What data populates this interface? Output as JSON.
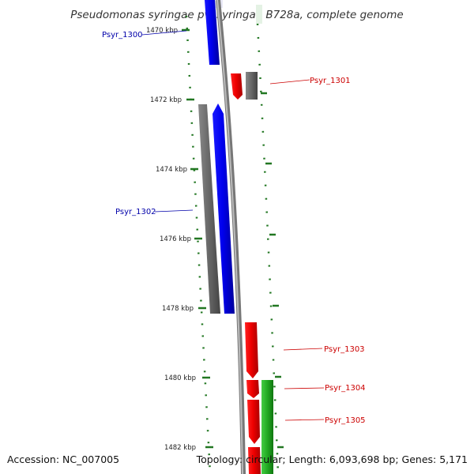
{
  "title": "Pseudomonas syringae pv. syringae B728a, complete genome",
  "footer": {
    "accession": "Accession: NC_007005",
    "summary": "Topology: circular; Length: 6,093,698 bp; Genes: 5,171"
  },
  "colors": {
    "forward_cds": "#0000ee",
    "reverse_cds": "#ee0000",
    "gray_track": "#666666",
    "green_track": "#22aa22",
    "tick": "#227722",
    "backbone": "#888888"
  },
  "ticks": [
    {
      "label": "1470 kbp"
    },
    {
      "label": "1472 kbp"
    },
    {
      "label": "1474 kbp"
    },
    {
      "label": "1476 kbp"
    },
    {
      "label": "1478 kbp"
    },
    {
      "label": "1480 kbp"
    },
    {
      "label": "1482 kbp"
    }
  ],
  "genes": [
    {
      "name": "Psyr_1300",
      "strand": "forward"
    },
    {
      "name": "Psyr_1301",
      "strand": "reverse"
    },
    {
      "name": "Psyr_1302",
      "strand": "forward"
    },
    {
      "name": "Psyr_1303",
      "strand": "reverse"
    },
    {
      "name": "Psyr_1304",
      "strand": "reverse"
    },
    {
      "name": "Psyr_1305",
      "strand": "reverse"
    }
  ]
}
